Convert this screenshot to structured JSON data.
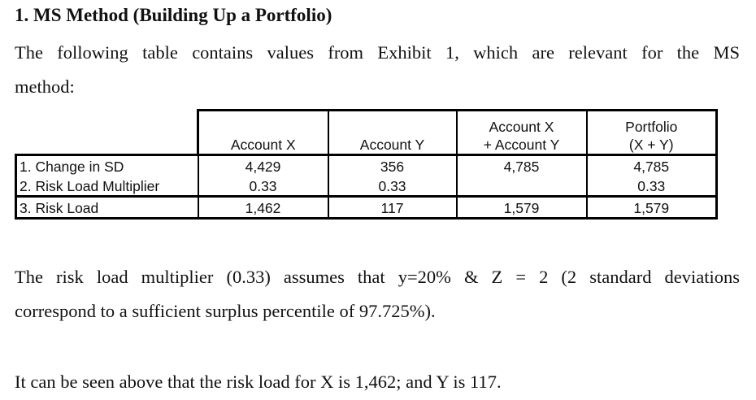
{
  "heading": "1. MS Method (Building Up a Portfolio)",
  "intro": {
    "line1": "The following table contains values from Exhibit 1, which are relevant for the MS",
    "line2": "method:"
  },
  "table": {
    "headers": [
      {
        "line1": "",
        "line2": "Account X"
      },
      {
        "line1": "",
        "line2": "Account Y"
      },
      {
        "line1": "Account X",
        "line2": "+ Account Y"
      },
      {
        "line1": "Portfolio",
        "line2": "(X + Y)"
      }
    ],
    "rows": [
      {
        "label": "1. Change in SD",
        "values": [
          "4,429",
          "356",
          "4,785",
          "4,785"
        ]
      },
      {
        "label": "2. Risk Load Multiplier",
        "values": [
          "0.33",
          "0.33",
          "",
          "0.33"
        ]
      },
      {
        "label": "3. Risk Load",
        "values": [
          "1,462",
          "117",
          "1,579",
          "1,579"
        ]
      }
    ]
  },
  "note": {
    "line1": "The risk load multiplier (0.33) assumes that y=20% & Z = 2 (2 standard deviations",
    "line2": "correspond to a sufficient surplus percentile of 97.725%)."
  },
  "conclusion": "It can be seen above that the risk load for X is 1,462; and Y is 117."
}
